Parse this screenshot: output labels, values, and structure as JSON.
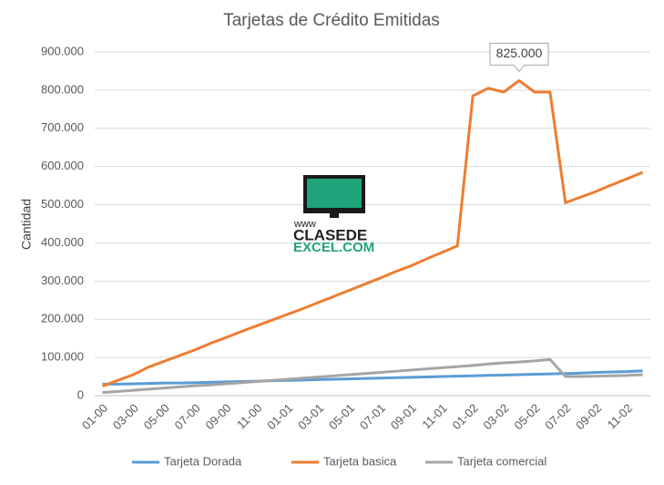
{
  "chart_data": {
    "type": "line",
    "title": "Tarjetas de Crédito Emitidas",
    "y_label": "Cantidad",
    "categories": [
      "01-00",
      null,
      "03-00",
      null,
      "05-00",
      null,
      "07-00",
      null,
      "09-00",
      null,
      "11-00",
      null,
      "01-01",
      null,
      "03-01",
      null,
      "05-01",
      null,
      "07-01",
      null,
      "09-01",
      null,
      "11-01",
      null,
      "01-02",
      null,
      "03-02",
      null,
      "05-02",
      null,
      "07-02",
      null,
      "09-02",
      null,
      "11-02",
      null
    ],
    "series": [
      {
        "name": "Tarjeta Dorada",
        "color": "#5b9bd5",
        "values": [
          30000,
          30000,
          31000,
          32000,
          33000,
          33000,
          34000,
          35000,
          36000,
          37000,
          38000,
          39000,
          40000,
          41000,
          42000,
          43000,
          44000,
          45000,
          46000,
          47000,
          48000,
          49000,
          50000,
          51000,
          52000,
          53000,
          54000,
          55000,
          56000,
          57000,
          58000,
          59000,
          61000,
          62000,
          63000,
          65000
        ]
      },
      {
        "name": "Tarjeta basica",
        "color": "#ed7d31",
        "values": [
          25000,
          40000,
          55000,
          75000,
          90000,
          105000,
          120000,
          137000,
          152000,
          168000,
          183000,
          198000,
          213000,
          228000,
          244000,
          260000,
          276000,
          292000,
          308000,
          325000,
          340000,
          358000,
          375000,
          392000,
          785000,
          805000,
          795000,
          825000,
          795000,
          795000,
          505000,
          520000,
          535000,
          552000,
          568000,
          585000
        ],
        "value_labels": [
          null,
          null,
          null,
          null,
          null,
          null,
          null,
          null,
          null,
          null,
          null,
          null,
          null,
          null,
          null,
          null,
          null,
          null,
          null,
          null,
          null,
          null,
          null,
          null,
          null,
          null,
          null,
          "825.000",
          null,
          null,
          null,
          null,
          null,
          null,
          null,
          null
        ]
      },
      {
        "name": "Tarjeta comercial",
        "color": "#a5a5a5",
        "values": [
          8000,
          11000,
          14000,
          17000,
          20000,
          23000,
          26000,
          28000,
          31000,
          34000,
          37000,
          40000,
          43000,
          46000,
          49000,
          52000,
          55000,
          58000,
          61000,
          64000,
          67000,
          70000,
          73000,
          76000,
          79000,
          83000,
          86000,
          88000,
          91000,
          95000,
          50000,
          50000,
          51000,
          52000,
          53000,
          55000
        ]
      }
    ],
    "ylim": [
      0,
      900000
    ],
    "yticks": [
      {
        "value": 0,
        "label": "0"
      },
      {
        "value": 100000,
        "label": "100.000"
      },
      {
        "value": 200000,
        "label": "200.000"
      },
      {
        "value": 300000,
        "label": "300.000"
      },
      {
        "value": 400000,
        "label": "400.000"
      },
      {
        "value": 500000,
        "label": "500.000"
      },
      {
        "value": 600000,
        "label": "600.000"
      },
      {
        "value": 700000,
        "label": "700.000"
      },
      {
        "value": 800000,
        "label": "800.000"
      },
      {
        "value": 900000,
        "label": "900.000"
      }
    ],
    "grid": true,
    "legend": "bottom",
    "watermark": [
      "www",
      "CLASEDE",
      "EXCEL.COM"
    ]
  }
}
